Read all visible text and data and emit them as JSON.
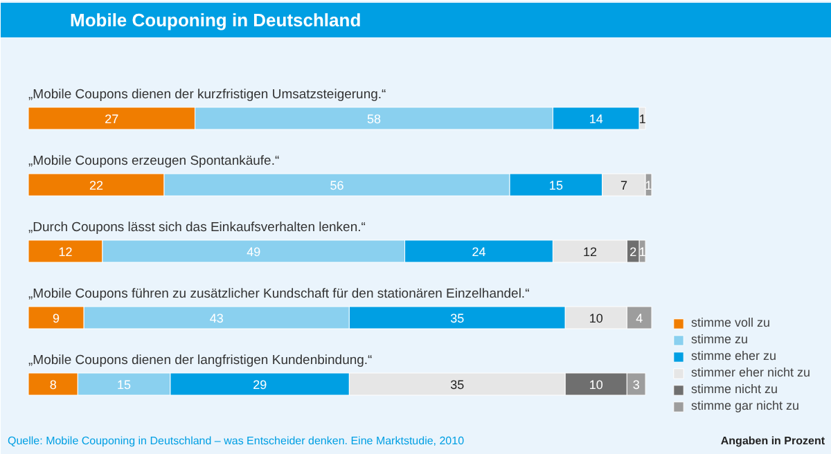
{
  "chart_data": {
    "type": "bar",
    "orientation": "horizontal",
    "stacked": true,
    "data_labels": true,
    "legend": "bottom right",
    "grid": false,
    "title": "Mobile Couponing in Deutschland",
    "categories": [
      "„Mobile Coupons dienen der kurzfristigen Umsatzsteigerung.“",
      "„Mobile Coupons erzeugen Spontankäufe.“",
      "„Durch Coupons lässt sich das Einkaufsverhalten lenken.“",
      "„Mobile Coupons führen zu zusätzlicher Kundschaft für den stationären Einzelhandel.“",
      "„Mobile Coupons dienen der langfristigen Kundenbindung.“"
    ],
    "series": [
      {
        "name": "stimme voll zu",
        "color": "#f07d00",
        "values": [
          27,
          22,
          12,
          9,
          8
        ]
      },
      {
        "name": "stimme zu",
        "color": "#8ad0ef",
        "values": [
          58,
          56,
          49,
          43,
          15
        ]
      },
      {
        "name": "stimme eher zu",
        "color": "#009fe3",
        "values": [
          14,
          15,
          24,
          35,
          29
        ]
      },
      {
        "name": "stimmer eher nicht zu",
        "color": "#e6e6e6",
        "values": [
          1,
          7,
          12,
          10,
          35
        ]
      },
      {
        "name": "stimme nicht zu",
        "color": "#6f6f6f",
        "values": [
          null,
          null,
          2,
          null,
          10
        ]
      },
      {
        "name": "stimme gar nicht zu",
        "color": "#9d9d9d",
        "values": [
          null,
          1,
          1,
          4,
          3
        ]
      }
    ],
    "annotations": [
      "Quelle: Mobile Couponing in Deutschland – was Entscheider denken. Eine Marktstudie, 2010",
      "Angaben in Prozent"
    ]
  }
}
